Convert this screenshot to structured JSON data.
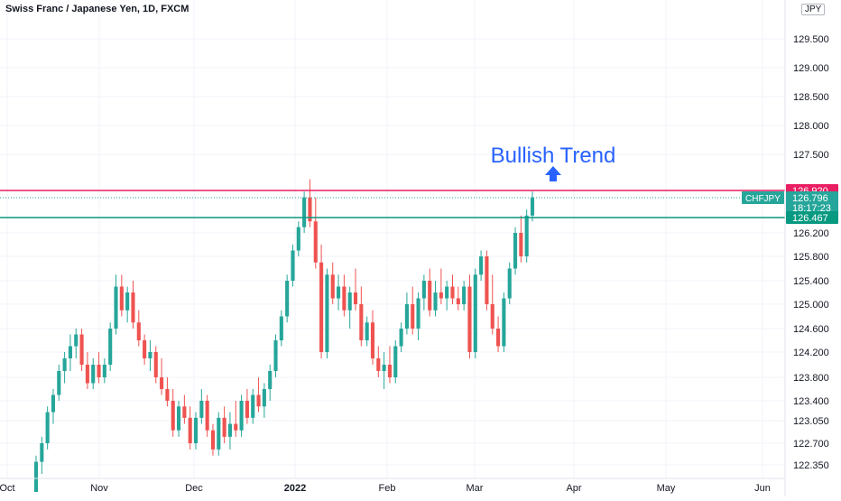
{
  "title": "Swiss Franc / Japanese Yen, 1D, FXCM",
  "currency_badge": "JPY",
  "annotation": {
    "text": "Bullish Trend",
    "color": "#2962ff"
  },
  "colors": {
    "up": "#26a69a",
    "down": "#ef5350",
    "resistance": "#e91e63",
    "support": "#089981"
  },
  "price_labels": {
    "resistance": "126.920",
    "current_symbol": "CHFJPY",
    "current_price": "126.796",
    "countdown": "18:17:23",
    "support": "126.467"
  },
  "chart_data": {
    "type": "candlestick",
    "symbol": "CHFJPY",
    "title": "Swiss Franc / Japanese Yen, 1D, FXCM",
    "ylim": [
      122.2,
      130.0
    ],
    "y_ticks": [
      "129.500",
      "129.000",
      "128.500",
      "128.000",
      "127.500",
      "126.200",
      "125.800",
      "125.400",
      "125.000",
      "124.600",
      "124.200",
      "123.800",
      "123.400",
      "123.050",
      "122.700",
      "122.350"
    ],
    "x_ticks": [
      "Oct",
      "Nov",
      "Dec",
      "2022",
      "Feb",
      "Mar",
      "Apr",
      "May",
      "Jun"
    ],
    "resistance_level": 126.92,
    "support_level": 126.467,
    "last_price": 126.796,
    "candles": [
      [
        122.2,
        122.5,
        122.1,
        122.4
      ],
      [
        122.4,
        122.8,
        122.3,
        122.7
      ],
      [
        122.7,
        123.3,
        122.6,
        123.2
      ],
      [
        123.2,
        123.6,
        123.0,
        123.5
      ],
      [
        123.5,
        124.0,
        123.4,
        123.9
      ],
      [
        123.9,
        124.2,
        123.7,
        124.1
      ],
      [
        124.1,
        124.5,
        123.9,
        124.3
      ],
      [
        124.3,
        124.6,
        124.1,
        124.5
      ],
      [
        124.5,
        124.6,
        123.9,
        124.0
      ],
      [
        124.0,
        124.2,
        123.6,
        123.7
      ],
      [
        123.7,
        124.1,
        123.6,
        124.0
      ],
      [
        124.0,
        124.2,
        123.7,
        123.8
      ],
      [
        123.8,
        124.1,
        123.7,
        124.0
      ],
      [
        124.0,
        124.7,
        123.9,
        124.6
      ],
      [
        124.6,
        125.5,
        124.5,
        125.3
      ],
      [
        125.3,
        125.5,
        124.8,
        124.9
      ],
      [
        124.9,
        125.3,
        124.7,
        125.2
      ],
      [
        125.2,
        125.4,
        124.6,
        124.7
      ],
      [
        124.7,
        124.9,
        124.3,
        124.4
      ],
      [
        124.4,
        124.5,
        124.0,
        124.1
      ],
      [
        124.1,
        124.4,
        123.9,
        124.2
      ],
      [
        124.2,
        124.3,
        123.7,
        123.8
      ],
      [
        123.8,
        124.1,
        123.5,
        123.6
      ],
      [
        123.6,
        123.8,
        123.3,
        123.4
      ],
      [
        123.4,
        123.6,
        122.8,
        122.9
      ],
      [
        122.9,
        123.4,
        122.8,
        123.3
      ],
      [
        123.3,
        123.5,
        123.0,
        123.1
      ],
      [
        123.1,
        123.3,
        122.6,
        122.7
      ],
      [
        122.7,
        123.2,
        122.6,
        123.1
      ],
      [
        123.1,
        123.6,
        123.0,
        123.4
      ],
      [
        123.4,
        123.5,
        122.8,
        122.9
      ],
      [
        122.9,
        123.0,
        122.5,
        122.6
      ],
      [
        122.6,
        123.2,
        122.5,
        123.1
      ],
      [
        123.1,
        123.3,
        122.7,
        122.8
      ],
      [
        122.8,
        123.2,
        122.6,
        123.0
      ],
      [
        123.0,
        123.4,
        122.8,
        122.9
      ],
      [
        122.9,
        123.5,
        122.8,
        123.4
      ],
      [
        123.4,
        123.6,
        123.0,
        123.1
      ],
      [
        123.1,
        123.6,
        123.0,
        123.5
      ],
      [
        123.5,
        123.8,
        123.2,
        123.3
      ],
      [
        123.3,
        123.7,
        123.1,
        123.6
      ],
      [
        123.6,
        124.0,
        123.4,
        123.9
      ],
      [
        123.9,
        124.5,
        123.8,
        124.4
      ],
      [
        124.4,
        124.9,
        124.3,
        124.8
      ],
      [
        124.8,
        125.5,
        124.7,
        125.4
      ],
      [
        125.4,
        126.0,
        125.3,
        125.9
      ],
      [
        125.9,
        126.4,
        125.8,
        126.3
      ],
      [
        126.3,
        126.9,
        126.2,
        126.8
      ],
      [
        126.8,
        127.1,
        126.3,
        126.4
      ],
      [
        126.4,
        126.8,
        125.6,
        125.7
      ],
      [
        125.7,
        126.0,
        124.1,
        124.2
      ],
      [
        124.2,
        125.6,
        124.1,
        125.5
      ],
      [
        125.5,
        125.7,
        125.0,
        125.1
      ],
      [
        125.1,
        125.5,
        124.9,
        125.3
      ],
      [
        125.3,
        125.5,
        124.8,
        124.9
      ],
      [
        124.9,
        125.3,
        124.6,
        125.2
      ],
      [
        125.2,
        125.6,
        124.9,
        125.0
      ],
      [
        125.0,
        125.3,
        124.3,
        124.4
      ],
      [
        124.4,
        124.8,
        124.3,
        124.7
      ],
      [
        124.7,
        124.9,
        124.0,
        124.1
      ],
      [
        124.1,
        124.3,
        123.8,
        123.9
      ],
      [
        123.9,
        124.2,
        123.6,
        124.0
      ],
      [
        124.0,
        124.3,
        123.7,
        123.8
      ],
      [
        123.8,
        124.4,
        123.7,
        124.3
      ],
      [
        124.3,
        124.7,
        124.2,
        124.6
      ],
      [
        124.6,
        125.2,
        124.5,
        125.0
      ],
      [
        125.0,
        125.3,
        124.5,
        124.6
      ],
      [
        124.6,
        125.2,
        124.4,
        125.1
      ],
      [
        125.1,
        125.5,
        124.9,
        125.4
      ],
      [
        125.4,
        125.6,
        124.8,
        124.9
      ],
      [
        124.9,
        125.4,
        124.8,
        125.2
      ],
      [
        125.2,
        125.6,
        125.0,
        125.1
      ],
      [
        125.1,
        125.4,
        124.9,
        125.3
      ],
      [
        125.3,
        125.5,
        125.0,
        125.1
      ],
      [
        125.1,
        125.3,
        124.9,
        125.0
      ],
      [
        125.0,
        125.4,
        124.9,
        125.3
      ],
      [
        125.3,
        125.5,
        124.1,
        124.2
      ],
      [
        124.2,
        125.6,
        124.1,
        125.5
      ],
      [
        125.5,
        125.9,
        125.4,
        125.8
      ],
      [
        125.8,
        125.9,
        124.9,
        125.0
      ],
      [
        125.0,
        125.5,
        124.5,
        124.6
      ],
      [
        124.6,
        124.8,
        124.2,
        124.3
      ],
      [
        124.3,
        125.2,
        124.2,
        125.1
      ],
      [
        125.1,
        125.7,
        125.0,
        125.6
      ],
      [
        125.6,
        126.3,
        125.5,
        126.2
      ],
      [
        126.2,
        126.5,
        125.7,
        125.8
      ],
      [
        125.8,
        126.6,
        125.7,
        126.5
      ],
      [
        126.5,
        126.9,
        126.4,
        126.8
      ]
    ]
  }
}
